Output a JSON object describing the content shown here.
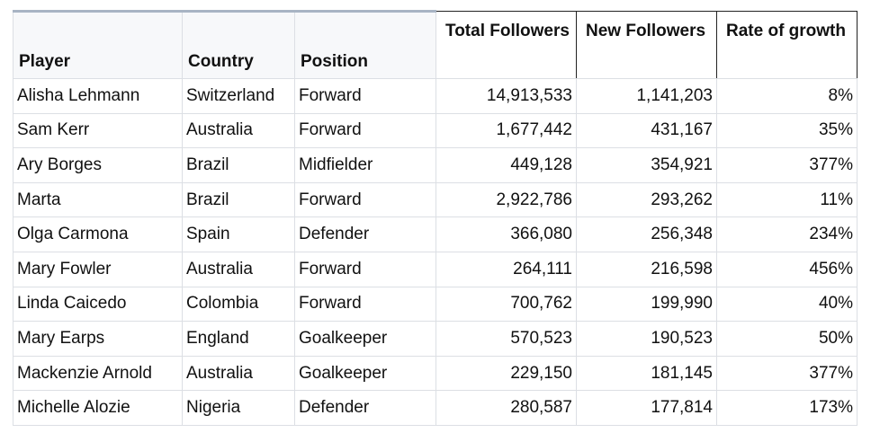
{
  "table": {
    "headers": {
      "player": "Player",
      "country": "Country",
      "position": "Position",
      "total_followers": "Total Followers",
      "new_followers": "New Followers",
      "rate_of_growth": "Rate of growth"
    },
    "rows": [
      {
        "player": "Alisha Lehmann",
        "country": "Switzerland",
        "position": "Forward",
        "total_followers": "14,913,533",
        "new_followers": "1,141,203",
        "rate_of_growth": "8%"
      },
      {
        "player": "Sam Kerr",
        "country": "Australia",
        "position": "Forward",
        "total_followers": "1,677,442",
        "new_followers": "431,167",
        "rate_of_growth": "35%"
      },
      {
        "player": "Ary Borges",
        "country": "Brazil",
        "position": "Midfielder",
        "total_followers": "449,128",
        "new_followers": "354,921",
        "rate_of_growth": "377%"
      },
      {
        "player": "Marta",
        "country": "Brazil",
        "position": "Forward",
        "total_followers": "2,922,786",
        "new_followers": "293,262",
        "rate_of_growth": "11%"
      },
      {
        "player": "Olga Carmona",
        "country": "Spain",
        "position": "Defender",
        "total_followers": "366,080",
        "new_followers": "256,348",
        "rate_of_growth": "234%"
      },
      {
        "player": "Mary Fowler",
        "country": "Australia",
        "position": "Forward",
        "total_followers": "264,111",
        "new_followers": "216,598",
        "rate_of_growth": "456%"
      },
      {
        "player": "Linda Caicedo",
        "country": "Colombia",
        "position": "Forward",
        "total_followers": "700,762",
        "new_followers": "199,990",
        "rate_of_growth": "40%"
      },
      {
        "player": "Mary Earps",
        "country": "England",
        "position": "Goalkeeper",
        "total_followers": "570,523",
        "new_followers": "190,523",
        "rate_of_growth": "50%"
      },
      {
        "player": "Mackenzie Arnold",
        "country": "Australia",
        "position": "Goalkeeper",
        "total_followers": "229,150",
        "new_followers": "181,145",
        "rate_of_growth": "377%"
      },
      {
        "player": "Michelle Alozie",
        "country": "Nigeria",
        "position": "Defender",
        "total_followers": "280,587",
        "new_followers": "177,814",
        "rate_of_growth": "173%"
      }
    ]
  }
}
